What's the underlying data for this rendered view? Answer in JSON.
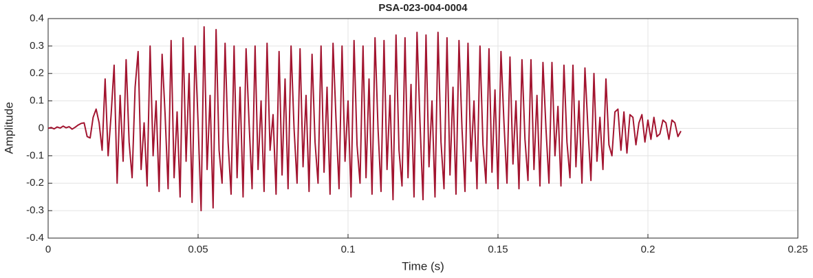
{
  "chart_data": {
    "type": "line",
    "title": "PSA-023-004-0004",
    "xlabel": "Time (s)",
    "ylabel": "Amplitude",
    "x": [
      0,
      0.001,
      0.002,
      0.003,
      0.004,
      0.005,
      0.006,
      0.007,
      0.008,
      0.009,
      0.01,
      0.011,
      0.012,
      0.013,
      0.014,
      0.015,
      0.016,
      0.017,
      0.018,
      0.019,
      0.02,
      0.021,
      0.022,
      0.023,
      0.024,
      0.025,
      0.026,
      0.027,
      0.028,
      0.029,
      0.03,
      0.031,
      0.032,
      0.033,
      0.034,
      0.035,
      0.036,
      0.037,
      0.038,
      0.039,
      0.04,
      0.041,
      0.042,
      0.043,
      0.044,
      0.045,
      0.046,
      0.047,
      0.048,
      0.049,
      0.05,
      0.051,
      0.052,
      0.053,
      0.054,
      0.055,
      0.056,
      0.057,
      0.058,
      0.059,
      0.06,
      0.061,
      0.062,
      0.063,
      0.064,
      0.065,
      0.066,
      0.067,
      0.068,
      0.069,
      0.07,
      0.071,
      0.072,
      0.073,
      0.074,
      0.075,
      0.076,
      0.077,
      0.078,
      0.079,
      0.08,
      0.081,
      0.082,
      0.083,
      0.084,
      0.085,
      0.086,
      0.087,
      0.088,
      0.089,
      0.09,
      0.091,
      0.092,
      0.093,
      0.094,
      0.095,
      0.096,
      0.097,
      0.098,
      0.099,
      0.1,
      0.101,
      0.102,
      0.103,
      0.104,
      0.105,
      0.106,
      0.107,
      0.108,
      0.109,
      0.11,
      0.111,
      0.112,
      0.113,
      0.114,
      0.115,
      0.116,
      0.117,
      0.118,
      0.119,
      0.12,
      0.121,
      0.122,
      0.123,
      0.124,
      0.125,
      0.126,
      0.127,
      0.128,
      0.129,
      0.13,
      0.131,
      0.132,
      0.133,
      0.134,
      0.135,
      0.136,
      0.137,
      0.138,
      0.139,
      0.14,
      0.141,
      0.142,
      0.143,
      0.144,
      0.145,
      0.146,
      0.147,
      0.148,
      0.149,
      0.15,
      0.151,
      0.152,
      0.153,
      0.154,
      0.155,
      0.156,
      0.157,
      0.158,
      0.159,
      0.16,
      0.161,
      0.162,
      0.163,
      0.164,
      0.165,
      0.166,
      0.167,
      0.168,
      0.169,
      0.17,
      0.171,
      0.172,
      0.173,
      0.174,
      0.175,
      0.176,
      0.177,
      0.178,
      0.179,
      0.18,
      0.181,
      0.182,
      0.183,
      0.184,
      0.185,
      0.186,
      0.187,
      0.188,
      0.189,
      0.19,
      0.191,
      0.192,
      0.193,
      0.194,
      0.195,
      0.196,
      0.197,
      0.198,
      0.199,
      0.2,
      0.201,
      0.202,
      0.203,
      0.204,
      0.205,
      0.206,
      0.207,
      0.208,
      0.209,
      0.21,
      0.211
    ],
    "values": [
      0,
      0.003,
      -0.002,
      0.005,
      0.001,
      0.008,
      0.002,
      0.006,
      -0.003,
      0.004,
      0.012,
      0.018,
      0.02,
      -0.03,
      -0.035,
      0.04,
      0.07,
      0.02,
      -0.08,
      0.18,
      -0.1,
      0.05,
      0.23,
      -0.2,
      0.12,
      -0.12,
      0.25,
      -0.05,
      -0.18,
      0.15,
      0.28,
      -0.15,
      0.02,
      -0.21,
      0.3,
      -0.1,
      0.1,
      -0.23,
      0.27,
      0.05,
      -0.22,
      0.32,
      -0.18,
      0.06,
      -0.25,
      0.33,
      -0.12,
      0.2,
      -0.27,
      0.3,
      0.02,
      -0.3,
      0.37,
      -0.15,
      0.12,
      -0.29,
      0.36,
      -0.08,
      -0.2,
      0.31,
      -0.05,
      -0.24,
      0.3,
      -0.18,
      0.15,
      -0.25,
      0.29,
      0.02,
      -0.22,
      0.3,
      -0.15,
      0.1,
      -0.23,
      0.31,
      -0.08,
      0.05,
      -0.24,
      0.28,
      -0.17,
      0.18,
      -0.22,
      0.3,
      0,
      -0.2,
      0.29,
      -0.14,
      0.12,
      -0.23,
      0.27,
      -0.05,
      -0.2,
      0.3,
      -0.16,
      0.15,
      -0.24,
      0.31,
      0.03,
      -0.22,
      0.3,
      -0.12,
      0.1,
      -0.25,
      0.32,
      -0.06,
      -0.2,
      0.3,
      -0.18,
      0.18,
      -0.24,
      0.33,
      0,
      -0.23,
      0.32,
      -0.15,
      0.12,
      -0.26,
      0.34,
      -0.08,
      -0.21,
      0.33,
      -0.18,
      0.16,
      -0.25,
      0.35,
      0.02,
      -0.26,
      0.34,
      -0.14,
      0.1,
      -0.25,
      0.35,
      -0.05,
      -0.22,
      0.33,
      -0.17,
      0.15,
      -0.24,
      0.32,
      0,
      -0.23,
      0.31,
      -0.12,
      0.1,
      -0.22,
      0.3,
      -0.06,
      -0.2,
      0.29,
      -0.16,
      0.14,
      -0.22,
      0.28,
      0.02,
      -0.2,
      0.26,
      -0.13,
      0.1,
      -0.22,
      0.25,
      -0.04,
      -0.19,
      0.25,
      -0.15,
      0.12,
      -0.21,
      0.24,
      0,
      -0.2,
      0.24,
      -0.1,
      0.08,
      -0.21,
      0.23,
      -0.05,
      -0.18,
      0.23,
      -0.14,
      0.1,
      -0.2,
      0.22,
      0,
      -0.19,
      0.2,
      -0.12,
      0.04,
      -0.15,
      0.18,
      -0.06,
      -0.1,
      0.06,
      0.07,
      -0.08,
      0.06,
      -0.09,
      0.05,
      0.04,
      -0.06,
      0.02,
      0.05,
      -0.05,
      0.03,
      -0.04,
      0.04,
      -0.03,
      -0.02,
      0.03,
      0.02,
      -0.04,
      0.03,
      0.02,
      -0.03,
      -0.01
    ],
    "color": "#a2142f",
    "xlim": [
      0,
      0.25
    ],
    "xticks": [
      0,
      0.05,
      0.1,
      0.15,
      0.2,
      0.25
    ],
    "ylim": [
      -0.4,
      0.4
    ],
    "yticks": [
      -0.4,
      -0.3,
      -0.2,
      -0.1,
      0,
      0.1,
      0.2,
      0.3,
      0.4
    ],
    "grid": true
  }
}
